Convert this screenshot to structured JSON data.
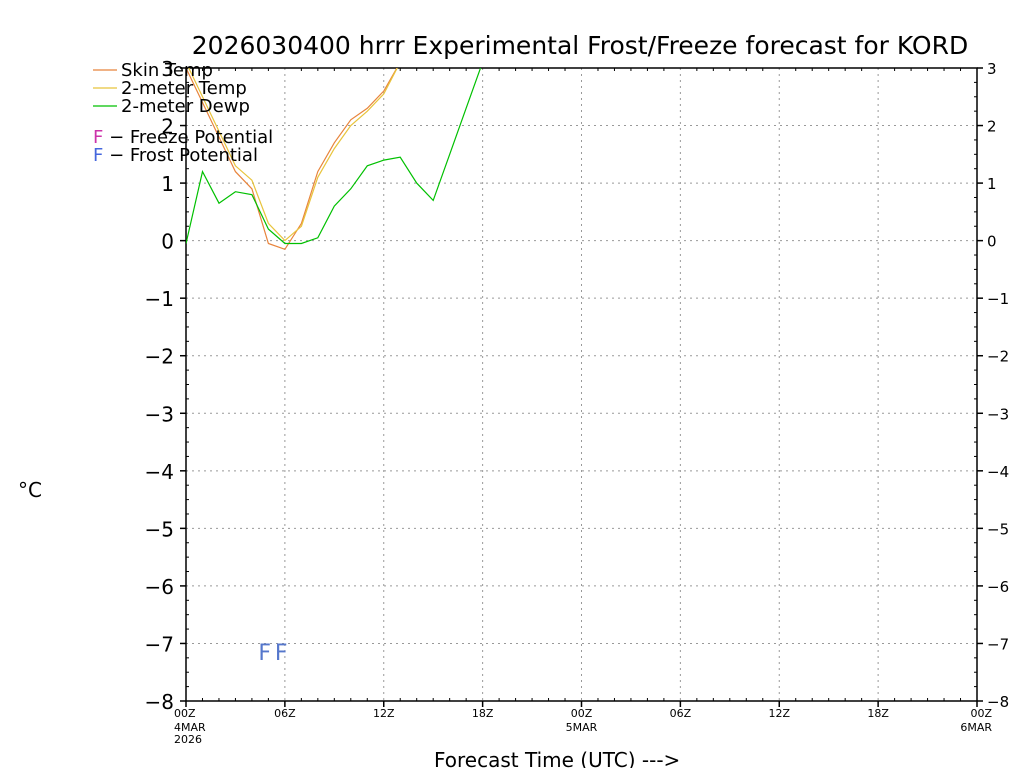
{
  "chart_data": {
    "type": "line",
    "title": "2026030400 hrrr Experimental Frost/Freeze forecast for KORD",
    "xlabel": "Forecast Time (UTC) --->",
    "ylabel": "°C",
    "ylim": [
      -8,
      3
    ],
    "xlim": [
      0,
      48
    ],
    "yticks": [
      -8,
      -7,
      -6,
      -5,
      -4,
      -3,
      -2,
      -1,
      0,
      1,
      2,
      3
    ],
    "grid": true,
    "xticks": [
      {
        "hour": 0,
        "label": "00Z",
        "sub": [
          "4MAR",
          "2026"
        ]
      },
      {
        "hour": 6,
        "label": "06Z",
        "sub": []
      },
      {
        "hour": 12,
        "label": "12Z",
        "sub": []
      },
      {
        "hour": 18,
        "label": "18Z",
        "sub": []
      },
      {
        "hour": 24,
        "label": "00Z",
        "sub": [
          "5MAR"
        ]
      },
      {
        "hour": 30,
        "label": "06Z",
        "sub": []
      },
      {
        "hour": 36,
        "label": "12Z",
        "sub": []
      },
      {
        "hour": 42,
        "label": "18Z",
        "sub": []
      },
      {
        "hour": 48,
        "label": "00Z",
        "sub": [
          "6MAR"
        ]
      }
    ],
    "series": [
      {
        "name": "Skin Temp",
        "color": "#e8843c",
        "x": [
          0,
          1,
          2,
          3,
          4,
          5,
          6,
          7,
          8,
          9,
          10,
          11,
          12,
          13
        ],
        "y": [
          3.0,
          2.4,
          1.8,
          1.2,
          0.9,
          -0.05,
          -0.15,
          0.3,
          1.2,
          1.7,
          2.1,
          2.3,
          2.6,
          3.1
        ]
      },
      {
        "name": "2-meter Temp",
        "color": "#e8c43c",
        "x": [
          0,
          1,
          2,
          3,
          4,
          5,
          6,
          7,
          8,
          9,
          10,
          11,
          12,
          13
        ],
        "y": [
          3.1,
          2.5,
          1.9,
          1.3,
          1.05,
          0.3,
          0.0,
          0.25,
          1.1,
          1.6,
          2.0,
          2.25,
          2.55,
          3.1
        ]
      },
      {
        "name": "2-meter Dewp",
        "color": "#00c000",
        "x": [
          0,
          1,
          2,
          3,
          4,
          5,
          6,
          7,
          8,
          9,
          10,
          11,
          12,
          13,
          14,
          15,
          16,
          17,
          18
        ],
        "y": [
          -0.05,
          1.2,
          0.65,
          0.85,
          0.8,
          0.2,
          -0.05,
          -0.05,
          0.05,
          0.6,
          0.9,
          1.3,
          1.4,
          1.45,
          1.0,
          0.7,
          1.5,
          2.3,
          3.1
        ]
      }
    ],
    "legend": [
      {
        "label": "Skin Temp",
        "color": "#e8843c"
      },
      {
        "label": "2-meter Temp",
        "color": "#e8c43c"
      },
      {
        "label": "2-meter Dewp",
        "color": "#00c000"
      }
    ],
    "potential_legend": [
      {
        "symbol": "F",
        "label": " − Freeze Potential",
        "color": "#cc33aa"
      },
      {
        "symbol": "F",
        "label": " − Frost Potential",
        "color": "#4466dd"
      }
    ],
    "markers": [
      {
        "text": "F",
        "hour": 5,
        "value": -7.15,
        "color": "#5577cc"
      },
      {
        "text": "F",
        "hour": 6,
        "value": -7.15,
        "color": "#5577cc"
      }
    ]
  }
}
